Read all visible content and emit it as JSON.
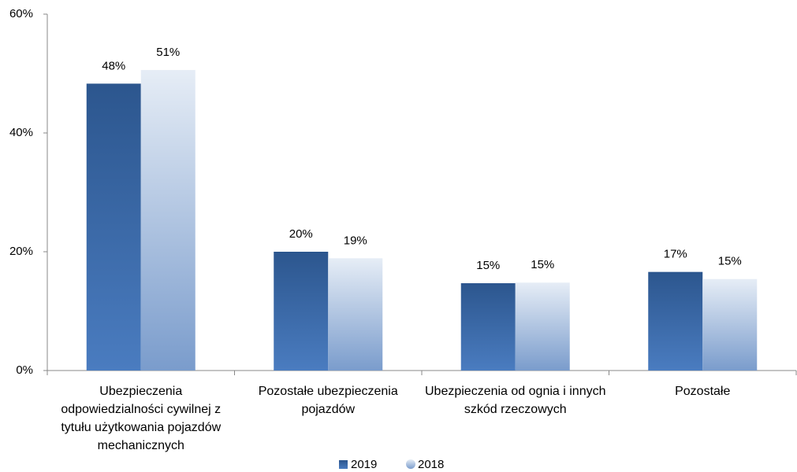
{
  "chart_data": {
    "type": "bar",
    "categories": [
      "Ubezpieczenia odpowiedzialności cywilnej z tytułu użytkowania pojazdów mechanicznych",
      "Pozostałe ubezpieczenia pojazdów",
      "Ubezpieczenia od ognia i innych szkód rzeczowych",
      "Pozostałe"
    ],
    "series": [
      {
        "name": "2019",
        "color": "#3565a5",
        "values": [
          48.3,
          20.0,
          14.7,
          16.6
        ],
        "value_labels": [
          "48%",
          "20%",
          "15%",
          "17%"
        ]
      },
      {
        "name": "2018",
        "color": "#b4c8e4",
        "values": [
          50.6,
          18.9,
          14.8,
          15.4
        ],
        "value_labels": [
          "51%",
          "19%",
          "15%",
          "15%"
        ]
      }
    ],
    "ylim": [
      0,
      60
    ],
    "yticks": [
      {
        "value": 0,
        "label": "0%"
      },
      {
        "value": 20,
        "label": "20%"
      },
      {
        "value": 40,
        "label": "40%"
      },
      {
        "value": 60,
        "label": "60%"
      }
    ],
    "grid": false,
    "legend": "bottom"
  }
}
